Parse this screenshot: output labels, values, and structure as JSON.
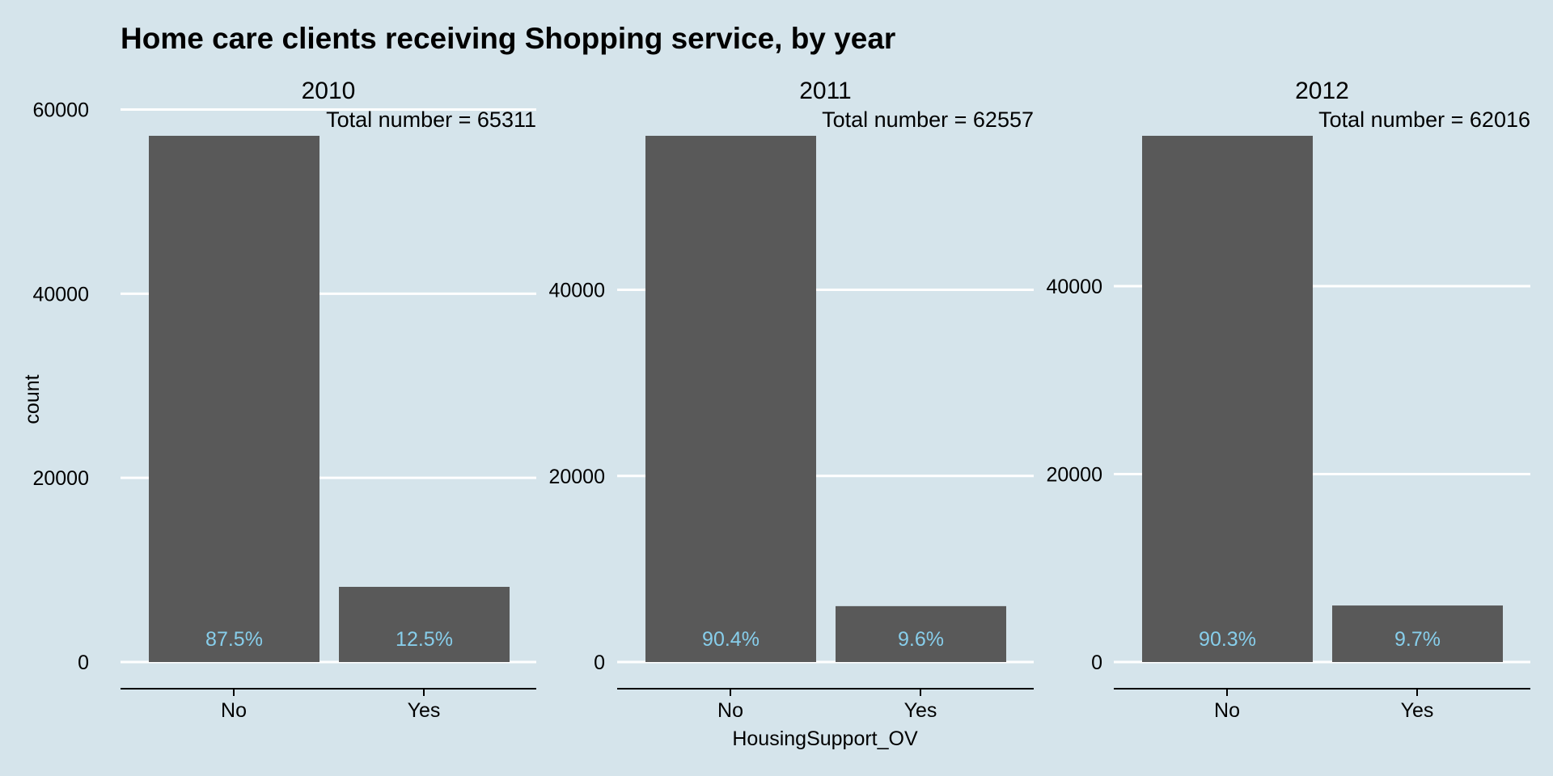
{
  "chart_data": {
    "type": "bar",
    "title": "Home care clients receiving Shopping service, by year",
    "xlabel": "HousingSupport_OV",
    "ylabel": "count",
    "categories": [
      "No",
      "Yes"
    ],
    "grid": "horizontal",
    "bar_color": "#595959",
    "label_color": "#87ceeb",
    "axis_color": "#000000",
    "grid_color": "#ffffff",
    "facets": [
      {
        "facet_label": "2010",
        "total_label": "Total number = 65311",
        "values": [
          57147,
          8164
        ],
        "data_labels": [
          "87.5%",
          "12.5%"
        ],
        "ylim": [
          0,
          60000
        ],
        "y_ticks": [
          0,
          20000,
          40000,
          60000
        ],
        "y_tick_labels": [
          "0",
          "20000",
          "40000",
          "60000"
        ]
      },
      {
        "facet_label": "2011",
        "total_label": "Total number = 62557",
        "values": [
          56552,
          6005
        ],
        "data_labels": [
          "90.4%",
          "9.6%"
        ],
        "ylim": [
          0,
          56552
        ],
        "y_ticks": [
          0,
          20000,
          40000
        ],
        "y_tick_labels": [
          "0",
          "20000",
          "40000"
        ]
      },
      {
        "facet_label": "2012",
        "total_label": "Total number = 62016",
        "values": [
          56001,
          6015
        ],
        "data_labels": [
          "90.3%",
          "9.7%"
        ],
        "ylim": [
          0,
          56001
        ],
        "y_ticks": [
          0,
          20000,
          40000
        ],
        "y_tick_labels": [
          "0",
          "20000",
          "40000"
        ]
      }
    ]
  }
}
